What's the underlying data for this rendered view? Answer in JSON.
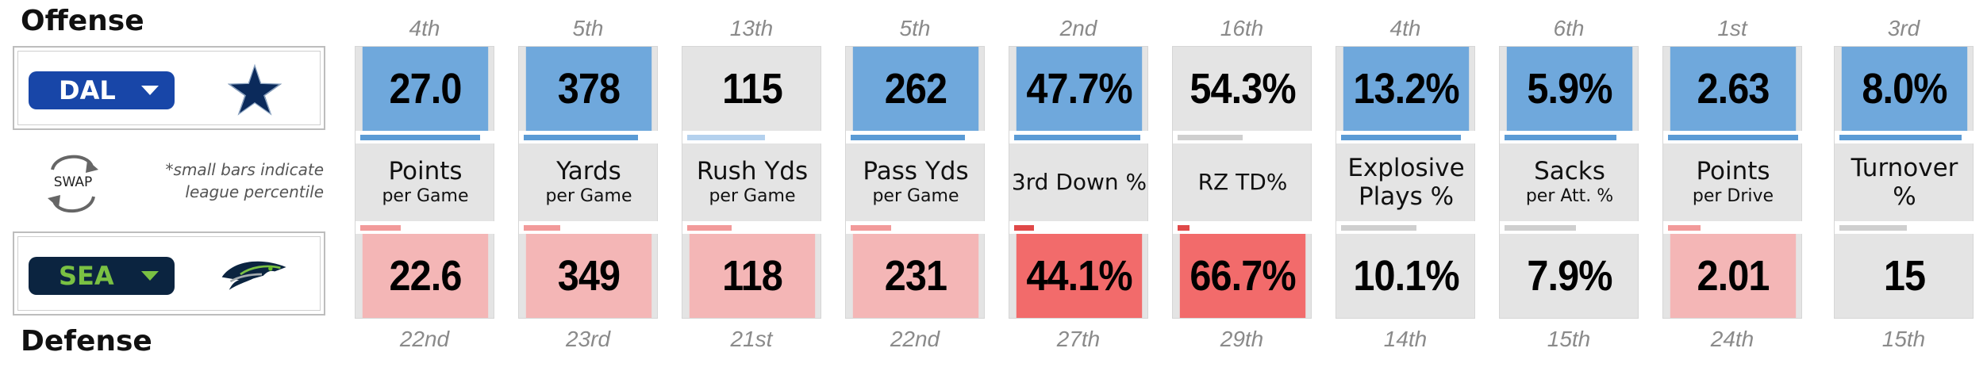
{
  "offense_label": "Offense",
  "defense_label": "Defense",
  "teams": {
    "top": {
      "abbr": "DAL",
      "logo": "dallas-star-logo",
      "select_bg": "#1846a8",
      "text_color": "#ffffff",
      "caret_color": "#ffffff"
    },
    "bottom": {
      "abbr": "SEA",
      "logo": "seattle-seahawk-logo",
      "select_bg": "#0b2440",
      "text_color": "#7ac143",
      "caret_color": "#7ac143"
    }
  },
  "swap_label": "SWAP",
  "note_line1": "*small bars indicate",
  "note_line2": "league percentile",
  "colors": {
    "top_strong": "#6fa8dc",
    "top_faint": "#9fc5e8",
    "bottom_light": "#f4b6b6",
    "bottom_strong": "#f26b6b",
    "neutral": "#e4e4e4",
    "bar_blue": "#5b9bd5",
    "bar_lightblue": "#b4d1ee",
    "bar_red": "#f29a9a",
    "bar_darkred": "#e04848",
    "bar_gray": "#cfcfcf"
  },
  "stats": [
    {
      "top_rank": "4th",
      "top_value": "27.0",
      "top_style": "top_strong",
      "top_bar": 0.92,
      "top_bar_color": "bar_blue",
      "label": "Points",
      "sub": "per Game",
      "bottom_rank": "22nd",
      "bottom_value": "22.6",
      "bottom_style": "bottom_light",
      "bottom_bar": 0.31,
      "bottom_bar_color": "bar_red"
    },
    {
      "top_rank": "5th",
      "top_value": "378",
      "top_style": "top_strong",
      "top_bar": 0.88,
      "top_bar_color": "bar_blue",
      "label": "Yards",
      "sub": "per Game",
      "bottom_rank": "23rd",
      "bottom_value": "349",
      "bottom_style": "bottom_light",
      "bottom_bar": 0.28,
      "bottom_bar_color": "bar_red"
    },
    {
      "top_rank": "13th",
      "top_value": "115",
      "top_style": "neutral",
      "top_bar": 0.6,
      "top_bar_color": "bar_lightblue",
      "label": "Rush Yds",
      "sub": "per Game",
      "bottom_rank": "21st",
      "bottom_value": "118",
      "bottom_style": "bottom_light",
      "bottom_bar": 0.34,
      "bottom_bar_color": "bar_red"
    },
    {
      "top_rank": "5th",
      "top_value": "262",
      "top_style": "top_strong",
      "top_bar": 0.88,
      "top_bar_color": "bar_blue",
      "label": "Pass Yds",
      "sub": "per Game",
      "bottom_rank": "22nd",
      "bottom_value": "231",
      "bottom_style": "bottom_light",
      "bottom_bar": 0.31,
      "bottom_bar_color": "bar_red"
    },
    {
      "top_rank": "2nd",
      "top_value": "47.7%",
      "top_style": "top_strong",
      "top_bar": 0.97,
      "top_bar_color": "bar_blue",
      "label": "3rd Down %",
      "sub": "",
      "bottom_rank": "27th",
      "bottom_value": "44.1%",
      "bottom_style": "bottom_strong",
      "bottom_bar": 0.15,
      "bottom_bar_color": "bar_darkred"
    },
    {
      "top_rank": "16th",
      "top_value": "54.3%",
      "top_style": "neutral",
      "top_bar": 0.5,
      "top_bar_color": "bar_gray",
      "label": "RZ TD%",
      "sub": "",
      "bottom_rank": "29th",
      "bottom_value": "66.7%",
      "bottom_style": "bottom_strong",
      "bottom_bar": 0.09,
      "bottom_bar_color": "bar_darkred"
    },
    {
      "top_rank": "4th",
      "top_value": "13.2%",
      "top_style": "top_strong",
      "top_bar": 0.92,
      "top_bar_color": "bar_blue",
      "label": "Explosive",
      "sub": "Plays %",
      "bottom_rank": "14th",
      "bottom_value": "10.1%",
      "bottom_style": "neutral",
      "bottom_bar": 0.58,
      "bottom_bar_color": "bar_gray"
    },
    {
      "top_rank": "6th",
      "top_value": "5.9%",
      "top_style": "top_strong",
      "top_bar": 0.86,
      "top_bar_color": "bar_blue",
      "label": "Sacks",
      "sub": "per Att. %",
      "bottom_rank": "15th",
      "bottom_value": "7.9%",
      "bottom_style": "neutral",
      "bottom_bar": 0.55,
      "bottom_bar_color": "bar_gray"
    },
    {
      "top_rank": "1st",
      "top_value": "2.63",
      "top_style": "top_strong",
      "top_bar": 1.0,
      "top_bar_color": "bar_blue",
      "label": "Points",
      "sub": "per Drive",
      "bottom_rank": "24th",
      "bottom_value": "2.01",
      "bottom_style": "bottom_light",
      "bottom_bar": 0.25,
      "bottom_bar_color": "bar_red"
    },
    {
      "top_rank": "3rd",
      "top_value": "8.0%",
      "top_style": "top_strong",
      "top_bar": 0.94,
      "top_bar_color": "bar_blue",
      "label": "Turnover",
      "sub": "%",
      "bottom_rank": "15th",
      "bottom_value": "15",
      "bottom_style": "neutral",
      "bottom_bar": 0.52,
      "bottom_bar_color": "bar_gray"
    }
  ]
}
